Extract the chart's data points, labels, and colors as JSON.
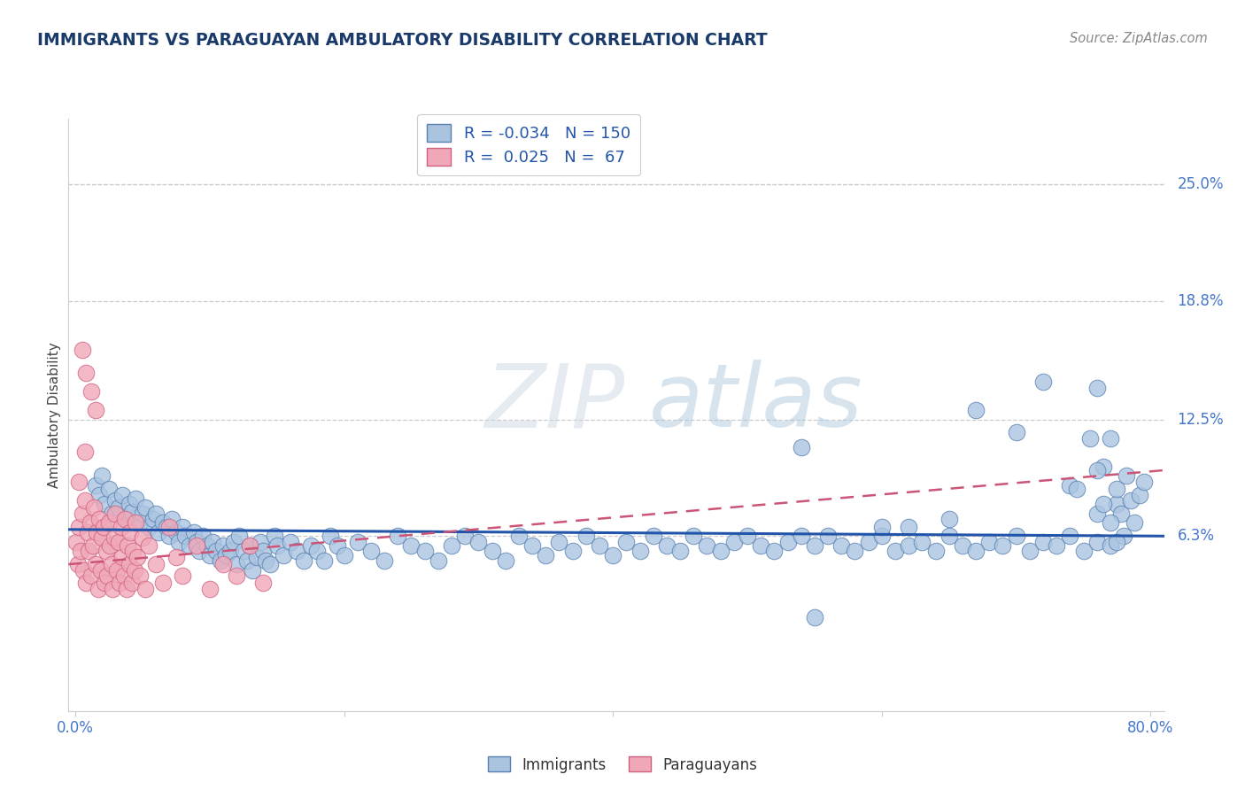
{
  "title": "IMMIGRANTS VS PARAGUAYAN AMBULATORY DISABILITY CORRELATION CHART",
  "source_text": "Source: ZipAtlas.com",
  "ylabel": "Ambulatory Disability",
  "r_immigrants": -0.034,
  "n_immigrants": 150,
  "r_paraguayans": 0.025,
  "n_paraguayans": 67,
  "xlim": [
    -0.005,
    0.81
  ],
  "ylim": [
    -0.03,
    0.285
  ],
  "ytick_vals": [
    0.0,
    0.063,
    0.125,
    0.188,
    0.25
  ],
  "ytick_labels": [
    "",
    "6.3%",
    "12.5%",
    "18.8%",
    "25.0%"
  ],
  "xtick_vals": [
    0.0,
    0.2,
    0.4,
    0.6,
    0.8
  ],
  "xtick_labels": [
    "0.0%",
    "",
    "",
    "",
    "80.0%"
  ],
  "blue_fill": "#aac4e0",
  "blue_edge": "#5580b0",
  "pink_fill": "#f0a8b8",
  "pink_edge": "#d06080",
  "blue_line_color": "#2255aa",
  "pink_line_color": "#cc5577",
  "title_color": "#1a3a6a",
  "source_color": "#888888",
  "ylabel_color": "#444444",
  "tick_color": "#4477cc",
  "grid_color": "#cccccc",
  "watermark_zip_color": "#c8d8e8",
  "watermark_atlas_color": "#b0c8e0",
  "bg_color": "#ffffff",
  "imm_trend_y0": 0.0665,
  "imm_trend_y1": 0.063,
  "par_trend_y0": 0.048,
  "par_trend_y1": 0.098,
  "immigrants_x": [
    0.015,
    0.018,
    0.02,
    0.022,
    0.025,
    0.027,
    0.03,
    0.032,
    0.035,
    0.038,
    0.04,
    0.042,
    0.045,
    0.048,
    0.05,
    0.052,
    0.055,
    0.058,
    0.06,
    0.062,
    0.065,
    0.068,
    0.07,
    0.072,
    0.075,
    0.077,
    0.08,
    0.082,
    0.085,
    0.088,
    0.09,
    0.092,
    0.095,
    0.098,
    0.1,
    0.102,
    0.105,
    0.108,
    0.11,
    0.112,
    0.115,
    0.118,
    0.12,
    0.122,
    0.125,
    0.128,
    0.13,
    0.132,
    0.135,
    0.138,
    0.14,
    0.142,
    0.145,
    0.148,
    0.15,
    0.155,
    0.16,
    0.165,
    0.17,
    0.175,
    0.18,
    0.185,
    0.19,
    0.195,
    0.2,
    0.21,
    0.22,
    0.23,
    0.24,
    0.25,
    0.26,
    0.27,
    0.28,
    0.29,
    0.3,
    0.31,
    0.32,
    0.33,
    0.34,
    0.35,
    0.36,
    0.37,
    0.38,
    0.39,
    0.4,
    0.41,
    0.42,
    0.43,
    0.44,
    0.45,
    0.46,
    0.47,
    0.48,
    0.49,
    0.5,
    0.51,
    0.52,
    0.53,
    0.54,
    0.55,
    0.56,
    0.57,
    0.58,
    0.59,
    0.6,
    0.61,
    0.62,
    0.63,
    0.64,
    0.65,
    0.66,
    0.67,
    0.68,
    0.69,
    0.7,
    0.71,
    0.72,
    0.73,
    0.74,
    0.75,
    0.76,
    0.77,
    0.78,
    0.54,
    0.6,
    0.65,
    0.7,
    0.74,
    0.76,
    0.775,
    0.76,
    0.765,
    0.77,
    0.775,
    0.778,
    0.782,
    0.785,
    0.788,
    0.792,
    0.795,
    0.55,
    0.62,
    0.67,
    0.72,
    0.745,
    0.755,
    0.76,
    0.765,
    0.77,
    0.775
  ],
  "immigrants_y": [
    0.09,
    0.085,
    0.095,
    0.08,
    0.088,
    0.075,
    0.082,
    0.078,
    0.085,
    0.072,
    0.08,
    0.076,
    0.083,
    0.07,
    0.075,
    0.078,
    0.068,
    0.072,
    0.075,
    0.065,
    0.07,
    0.068,
    0.063,
    0.072,
    0.065,
    0.06,
    0.068,
    0.063,
    0.058,
    0.065,
    0.06,
    0.055,
    0.063,
    0.058,
    0.053,
    0.06,
    0.055,
    0.05,
    0.058,
    0.053,
    0.055,
    0.06,
    0.048,
    0.063,
    0.055,
    0.05,
    0.058,
    0.045,
    0.052,
    0.06,
    0.055,
    0.05,
    0.048,
    0.063,
    0.058,
    0.053,
    0.06,
    0.055,
    0.05,
    0.058,
    0.055,
    0.05,
    0.063,
    0.058,
    0.053,
    0.06,
    0.055,
    0.05,
    0.063,
    0.058,
    0.055,
    0.05,
    0.058,
    0.063,
    0.06,
    0.055,
    0.05,
    0.063,
    0.058,
    0.053,
    0.06,
    0.055,
    0.063,
    0.058,
    0.053,
    0.06,
    0.055,
    0.063,
    0.058,
    0.055,
    0.063,
    0.058,
    0.055,
    0.06,
    0.063,
    0.058,
    0.055,
    0.06,
    0.063,
    0.058,
    0.063,
    0.058,
    0.055,
    0.06,
    0.063,
    0.055,
    0.058,
    0.06,
    0.055,
    0.063,
    0.058,
    0.055,
    0.06,
    0.058,
    0.063,
    0.055,
    0.06,
    0.058,
    0.063,
    0.055,
    0.06,
    0.058,
    0.063,
    0.11,
    0.068,
    0.072,
    0.118,
    0.09,
    0.075,
    0.08,
    0.142,
    0.1,
    0.115,
    0.088,
    0.075,
    0.095,
    0.082,
    0.07,
    0.085,
    0.092,
    0.02,
    0.068,
    0.13,
    0.145,
    0.088,
    0.115,
    0.098,
    0.08,
    0.07,
    0.06
  ],
  "paraguayans_x": [
    0.001,
    0.002,
    0.003,
    0.004,
    0.005,
    0.006,
    0.007,
    0.008,
    0.009,
    0.01,
    0.011,
    0.012,
    0.013,
    0.014,
    0.015,
    0.016,
    0.017,
    0.018,
    0.019,
    0.02,
    0.021,
    0.022,
    0.023,
    0.024,
    0.025,
    0.026,
    0.027,
    0.028,
    0.029,
    0.03,
    0.031,
    0.032,
    0.033,
    0.034,
    0.035,
    0.036,
    0.037,
    0.038,
    0.039,
    0.04,
    0.041,
    0.042,
    0.043,
    0.044,
    0.045,
    0.046,
    0.048,
    0.05,
    0.052,
    0.055,
    0.06,
    0.065,
    0.07,
    0.075,
    0.08,
    0.09,
    0.1,
    0.11,
    0.12,
    0.13,
    0.14,
    0.005,
    0.008,
    0.012,
    0.015,
    0.003,
    0.007
  ],
  "paraguayans_y": [
    0.06,
    0.048,
    0.068,
    0.055,
    0.075,
    0.045,
    0.082,
    0.038,
    0.065,
    0.055,
    0.07,
    0.042,
    0.058,
    0.078,
    0.048,
    0.065,
    0.035,
    0.072,
    0.045,
    0.062,
    0.068,
    0.038,
    0.055,
    0.042,
    0.07,
    0.058,
    0.048,
    0.035,
    0.062,
    0.075,
    0.045,
    0.06,
    0.038,
    0.068,
    0.052,
    0.042,
    0.072,
    0.035,
    0.058,
    0.048,
    0.065,
    0.038,
    0.055,
    0.045,
    0.07,
    0.052,
    0.042,
    0.062,
    0.035,
    0.058,
    0.048,
    0.038,
    0.068,
    0.052,
    0.042,
    0.058,
    0.035,
    0.048,
    0.042,
    0.058,
    0.038,
    0.162,
    0.15,
    0.14,
    0.13,
    0.092,
    0.108
  ]
}
